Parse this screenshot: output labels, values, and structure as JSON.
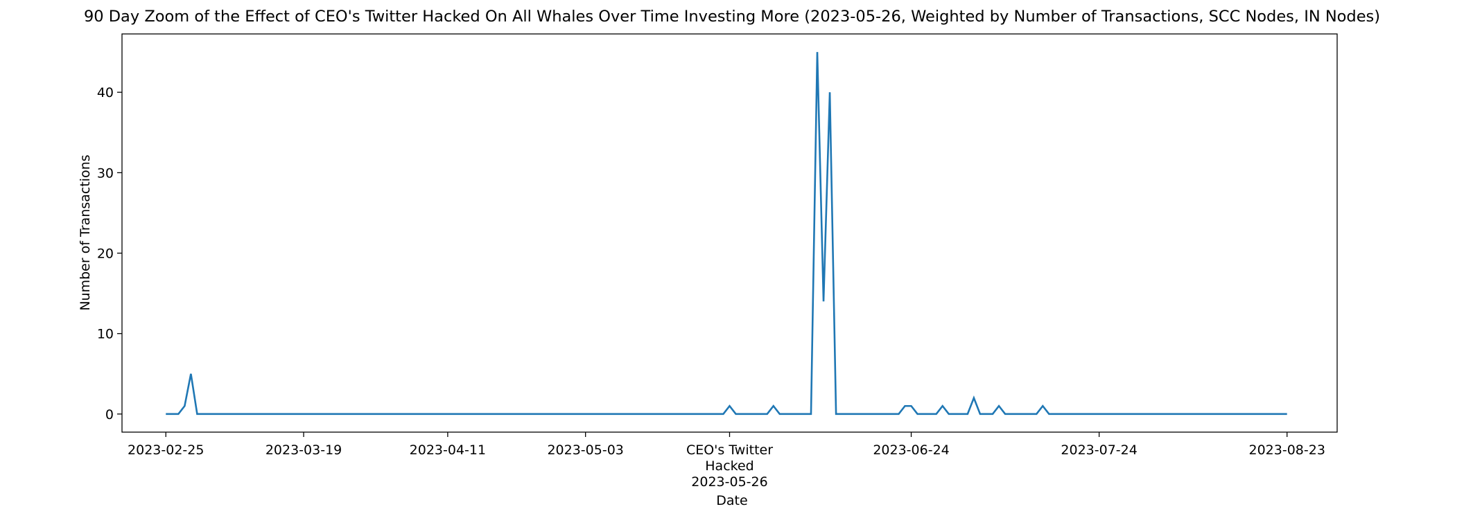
{
  "chart_data": {
    "type": "line",
    "title": "90 Day Zoom of the Effect of CEO's Twitter Hacked On All Whales Over Time Investing More (2023-05-26, Weighted by Number of Transactions, SCC Nodes, IN Nodes)",
    "xlabel": "Date",
    "ylabel": "Number of Transactions",
    "grid": false,
    "legend": "none",
    "line_color": "#1f77b4",
    "xlim": [
      "2023-02-18",
      "2023-08-31"
    ],
    "ylim": [
      -2.25,
      47.25
    ],
    "y_ticks": [
      0,
      10,
      20,
      30,
      40
    ],
    "x_ticks": [
      {
        "date": "2023-02-25",
        "label": [
          "2023-02-25"
        ]
      },
      {
        "date": "2023-03-19",
        "label": [
          "2023-03-19"
        ]
      },
      {
        "date": "2023-04-11",
        "label": [
          "2023-04-11"
        ]
      },
      {
        "date": "2023-05-03",
        "label": [
          "2023-05-03"
        ]
      },
      {
        "date": "2023-05-26",
        "label": [
          "CEO's Twitter",
          "Hacked",
          "2023-05-26"
        ]
      },
      {
        "date": "2023-06-24",
        "label": [
          "2023-06-24"
        ]
      },
      {
        "date": "2023-07-24",
        "label": [
          "2023-07-24"
        ]
      },
      {
        "date": "2023-08-23",
        "label": [
          "2023-08-23"
        ]
      }
    ],
    "series": [
      {
        "points": [
          [
            "2023-02-25",
            0
          ],
          [
            "2023-02-27",
            0
          ],
          [
            "2023-02-28",
            1
          ],
          [
            "2023-03-01",
            5
          ],
          [
            "2023-03-02",
            0
          ],
          [
            "2023-05-25",
            0
          ],
          [
            "2023-05-26",
            1
          ],
          [
            "2023-05-27",
            0
          ],
          [
            "2023-06-01",
            0
          ],
          [
            "2023-06-02",
            1
          ],
          [
            "2023-06-03",
            0
          ],
          [
            "2023-06-08",
            0
          ],
          [
            "2023-06-09",
            45
          ],
          [
            "2023-06-10",
            14
          ],
          [
            "2023-06-11",
            40
          ],
          [
            "2023-06-12",
            0
          ],
          [
            "2023-06-22",
            0
          ],
          [
            "2023-06-23",
            1
          ],
          [
            "2023-06-24",
            1
          ],
          [
            "2023-06-25",
            0
          ],
          [
            "2023-06-28",
            0
          ],
          [
            "2023-06-29",
            1
          ],
          [
            "2023-06-30",
            0
          ],
          [
            "2023-07-03",
            0
          ],
          [
            "2023-07-04",
            2
          ],
          [
            "2023-07-05",
            0
          ],
          [
            "2023-07-07",
            0
          ],
          [
            "2023-07-08",
            1
          ],
          [
            "2023-07-09",
            0
          ],
          [
            "2023-07-14",
            0
          ],
          [
            "2023-07-15",
            1
          ],
          [
            "2023-07-16",
            0
          ],
          [
            "2023-08-23",
            0
          ]
        ]
      }
    ]
  }
}
